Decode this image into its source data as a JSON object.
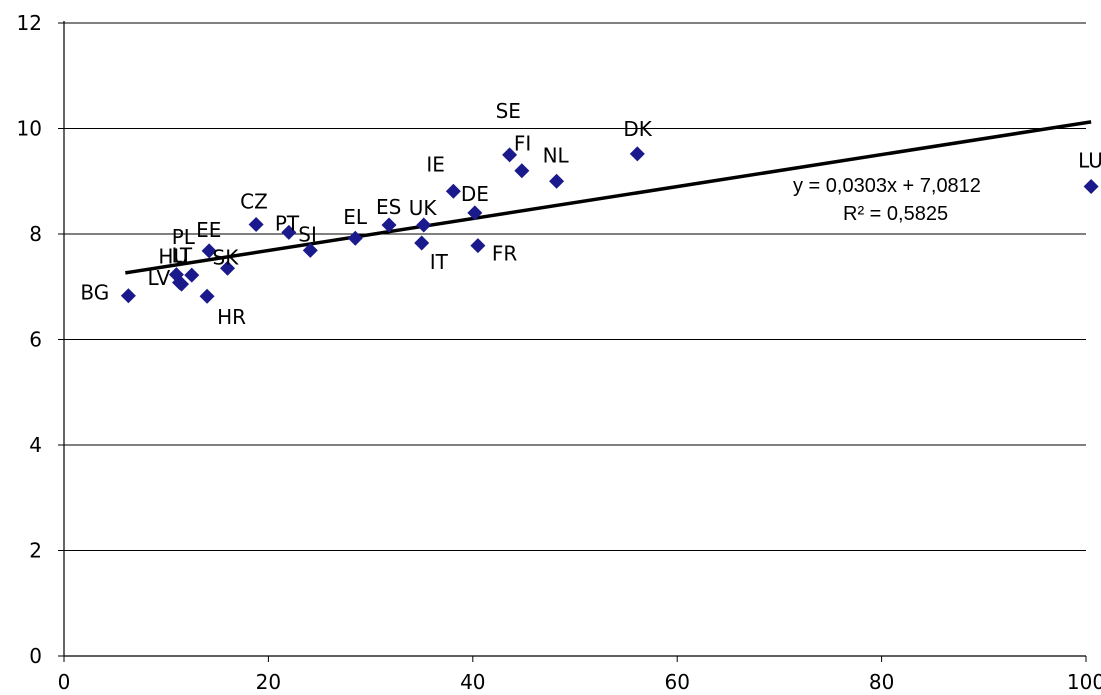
{
  "chart_data": {
    "type": "scatter",
    "title": "",
    "xlabel": "",
    "ylabel": "",
    "xlim": [
      0,
      100
    ],
    "ylim": [
      0,
      12
    ],
    "xticks": [
      "0",
      "20",
      "40",
      "60",
      "80",
      "100"
    ],
    "yticks": [
      "0",
      "2",
      "4",
      "6",
      "8",
      "10",
      "12"
    ],
    "grid": "horizontal",
    "marker_color": "#1a1a8c",
    "trendline_color": "#000000",
    "trendline": {
      "slope": 0.0303,
      "intercept": 7.0812,
      "x_range": [
        6,
        100.5
      ]
    },
    "equation": "y = 0,0303x + 7,0812",
    "r_squared": "R² = 0,5825",
    "points": [
      {
        "label": "BG",
        "x": 6.3,
        "y": 6.83
      },
      {
        "label": "LV",
        "x": 11.5,
        "y": 7.05
      },
      {
        "label": "HU",
        "x": 11.0,
        "y": 7.23
      },
      {
        "label": "LT",
        "x": 11.3,
        "y": 7.08
      },
      {
        "label": "PL",
        "x": 12.5,
        "y": 7.22
      },
      {
        "label": "HR",
        "x": 14.0,
        "y": 6.82
      },
      {
        "label": "EE",
        "x": 14.2,
        "y": 7.68
      },
      {
        "label": "SK",
        "x": 16.0,
        "y": 7.35
      },
      {
        "label": "CZ",
        "x": 18.8,
        "y": 8.18
      },
      {
        "label": "PT",
        "x": 22.0,
        "y": 8.03
      },
      {
        "label": "SI",
        "x": 24.1,
        "y": 7.69
      },
      {
        "label": "EL",
        "x": 28.5,
        "y": 7.92
      },
      {
        "label": "ES",
        "x": 31.8,
        "y": 8.17
      },
      {
        "label": "UK",
        "x": 35.2,
        "y": 8.17
      },
      {
        "label": "IT",
        "x": 35.0,
        "y": 7.83
      },
      {
        "label": "IE",
        "x": 38.1,
        "y": 8.81
      },
      {
        "label": "DE",
        "x": 40.2,
        "y": 8.4
      },
      {
        "label": "FR",
        "x": 40.5,
        "y": 7.78
      },
      {
        "label": "SE",
        "x": 43.6,
        "y": 9.5
      },
      {
        "label": "FI",
        "x": 44.8,
        "y": 9.2
      },
      {
        "label": "NL",
        "x": 48.2,
        "y": 9.0
      },
      {
        "label": "DK",
        "x": 56.1,
        "y": 9.52
      },
      {
        "label": "LU",
        "x": 100.5,
        "y": 8.9
      }
    ]
  }
}
